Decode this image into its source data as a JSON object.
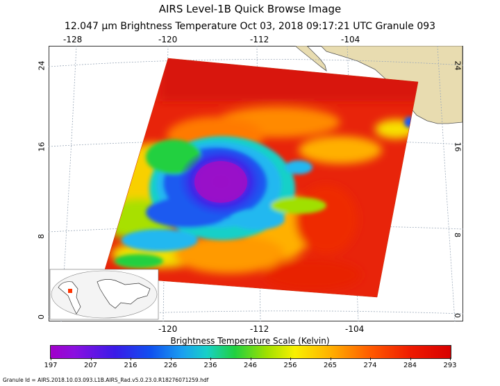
{
  "title": "AIRS Level-1B Quick Browse Image",
  "subtitle": "12.047 µm Brightness Temperature   Oct 03, 2018 09:17:21 UTC   Granule 093",
  "map": {
    "top_lon_labels": [
      "-128",
      "-120",
      "-112",
      "-104"
    ],
    "bottom_lon_labels": [
      "-120",
      "-112",
      "-104"
    ],
    "left_lat_labels": [
      "24",
      "16",
      "8",
      "0"
    ],
    "right_lat_labels": [
      "24",
      "16",
      "8",
      "0"
    ],
    "inset": "globe-locator-inset",
    "colors": {
      "land": "#e8dcb0",
      "ocean": "#ffffff",
      "grid": "#9aa8b8",
      "cold": "#a100c9",
      "warm": "#d80000"
    }
  },
  "colorbar": {
    "title": "Brightness Temperature Scale (Kelvin)",
    "ticks": [
      "197",
      "207",
      "216",
      "226",
      "236",
      "246",
      "256",
      "265",
      "274",
      "284",
      "293"
    ],
    "min": 197,
    "max": 293
  },
  "footer": "Granule Id = AIRS.2018.10.03.093.L1B.AIRS_Rad.v5.0.23.0.R18276071259.hdf"
}
